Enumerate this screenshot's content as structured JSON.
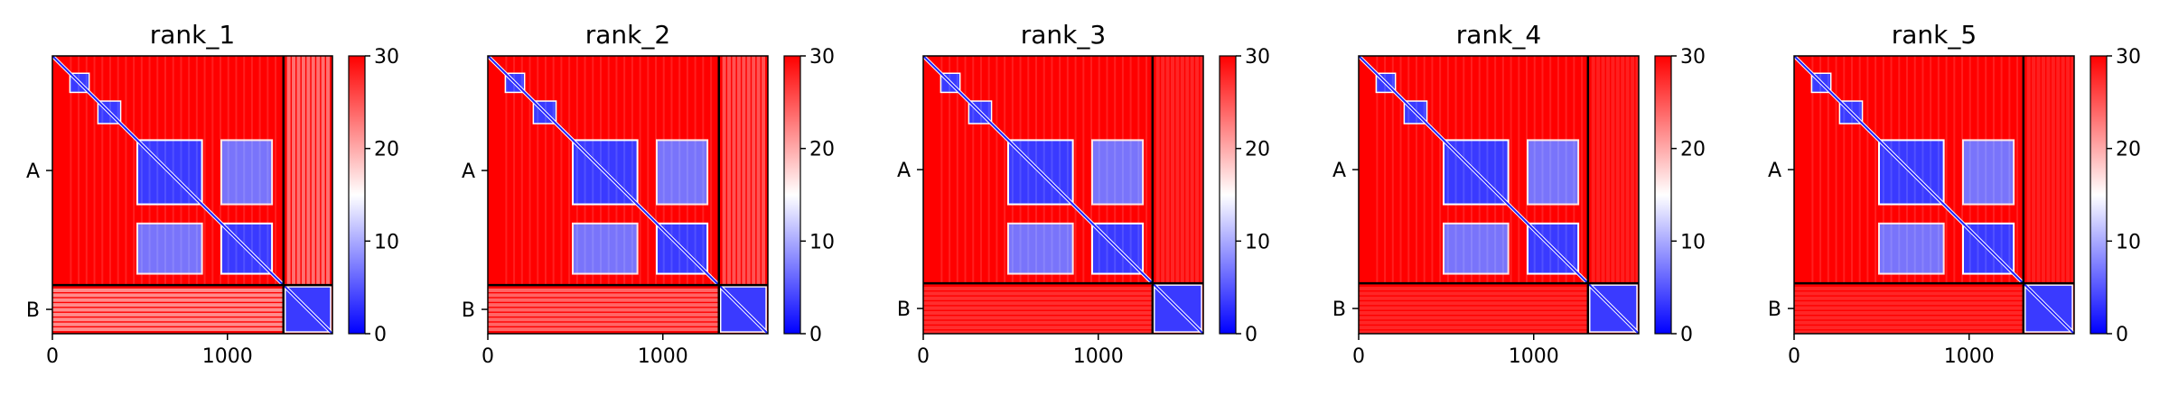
{
  "chart_data": [
    {
      "type": "heatmap",
      "title": "rank_1",
      "xlim": [
        0,
        1600
      ],
      "x_ticks": [
        0,
        1000
      ],
      "y_tick_labels": [
        "A",
        "B"
      ],
      "chain_boundary": 1320,
      "chains": [
        {
          "name": "A",
          "start": 0,
          "end": 1320
        },
        {
          "name": "B",
          "start": 1320,
          "end": 1600
        }
      ],
      "colorbar": {
        "min": 0,
        "max": 30,
        "ticks": [
          0,
          10,
          20,
          30
        ],
        "colors": [
          "#0000ff",
          "#ffffff",
          "#ff0000"
        ]
      },
      "interchain_intensity": 0.55
    },
    {
      "type": "heatmap",
      "title": "rank_2",
      "xlim": [
        0,
        1600
      ],
      "x_ticks": [
        0,
        1000
      ],
      "y_tick_labels": [
        "A",
        "B"
      ],
      "chain_boundary": 1320,
      "chains": [
        {
          "name": "A",
          "start": 0,
          "end": 1320
        },
        {
          "name": "B",
          "start": 1320,
          "end": 1600
        }
      ],
      "colorbar": {
        "min": 0,
        "max": 30,
        "ticks": [
          0,
          10,
          20,
          30
        ],
        "colors": [
          "#0000ff",
          "#ffffff",
          "#ff0000"
        ]
      },
      "interchain_intensity": 0.4
    },
    {
      "type": "heatmap",
      "title": "rank_3",
      "xlim": [
        0,
        1600
      ],
      "x_ticks": [
        0,
        1000
      ],
      "y_tick_labels": [
        "A",
        "B"
      ],
      "chain_boundary": 1310,
      "chains": [
        {
          "name": "A",
          "start": 0,
          "end": 1310
        },
        {
          "name": "B",
          "start": 1310,
          "end": 1600
        }
      ],
      "colorbar": {
        "min": 0,
        "max": 30,
        "ticks": [
          0,
          10,
          20,
          30
        ],
        "colors": [
          "#0000ff",
          "#ffffff",
          "#ff0000"
        ]
      },
      "interchain_intensity": 0.18
    },
    {
      "type": "heatmap",
      "title": "rank_4",
      "xlim": [
        0,
        1600
      ],
      "x_ticks": [
        0,
        1000
      ],
      "y_tick_labels": [
        "A",
        "B"
      ],
      "chain_boundary": 1310,
      "chains": [
        {
          "name": "A",
          "start": 0,
          "end": 1310
        },
        {
          "name": "B",
          "start": 1310,
          "end": 1600
        }
      ],
      "colorbar": {
        "min": 0,
        "max": 30,
        "ticks": [
          0,
          10,
          20,
          30
        ],
        "colors": [
          "#0000ff",
          "#ffffff",
          "#ff0000"
        ]
      },
      "interchain_intensity": 0.15
    },
    {
      "type": "heatmap",
      "title": "rank_5",
      "xlim": [
        0,
        1600
      ],
      "x_ticks": [
        0,
        1000
      ],
      "y_tick_labels": [
        "A",
        "B"
      ],
      "chain_boundary": 1310,
      "chains": [
        {
          "name": "A",
          "start": 0,
          "end": 1310
        },
        {
          "name": "B",
          "start": 1310,
          "end": 1600
        }
      ],
      "colorbar": {
        "min": 0,
        "max": 30,
        "ticks": [
          0,
          10,
          20,
          30
        ],
        "colors": [
          "#0000ff",
          "#ffffff",
          "#ff0000"
        ]
      },
      "interchain_intensity": 0.15
    }
  ]
}
